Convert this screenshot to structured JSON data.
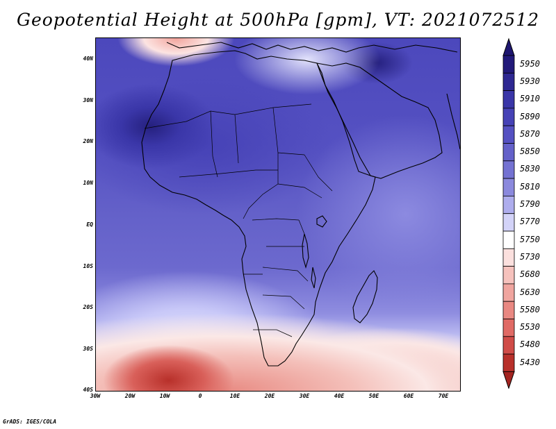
{
  "title": "Geopotential Height at 500hPa [gpm], VT: 2021072512",
  "credit": "GrADS: IGES/COLA",
  "y_axis_labels": [
    "40N",
    "30N",
    "20N",
    "10N",
    "EQ",
    "10S",
    "20S",
    "30S",
    "40S"
  ],
  "x_axis_labels": [
    "30W",
    "20W",
    "10W",
    "0",
    "10E",
    "20E",
    "30E",
    "40E",
    "50E",
    "60E",
    "70E"
  ],
  "colorbar": {
    "levels": [
      "5950",
      "5930",
      "5910",
      "5890",
      "5870",
      "5850",
      "5830",
      "5810",
      "5790",
      "5770",
      "5750",
      "5730",
      "5680",
      "5630",
      "5580",
      "5530",
      "5480",
      "5430"
    ],
    "colors": [
      "#221a7a",
      "#2e2892",
      "#3a36a8",
      "#4642b6",
      "#5551c2",
      "#6461c9",
      "#7472d2",
      "#8b89dd",
      "#aeaded",
      "#d3d3f8",
      "#ffffff",
      "#fbe0de",
      "#f6c2bd",
      "#f0a59f",
      "#e98882",
      "#e06a65",
      "#d04c48",
      "#b8302a"
    ],
    "top_arrow_color": "#1e1670",
    "bottom_arrow_color": "#a42420"
  }
}
